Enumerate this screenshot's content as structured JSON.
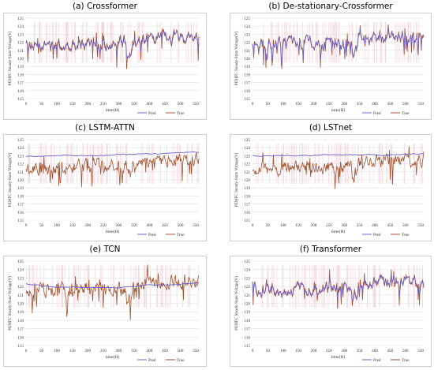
{
  "colors": {
    "pred": "#6f63c9",
    "true": "#a0522d",
    "grid": "#e0e0e0",
    "band": "#f0c6d2"
  },
  "shared": {
    "ylabel": "PEMFC Steady-State Voltage(V)",
    "xlabel": "time(H)",
    "yticks": [
      "115",
      "116",
      "117",
      "118",
      "119",
      "120",
      "121",
      "122",
      "123",
      "124",
      "125"
    ],
    "xticks": [
      "0",
      "50",
      "100",
      "150",
      "200",
      "250",
      "300",
      "350",
      "400",
      "450",
      "500",
      "550"
    ],
    "legend": {
      "pred": "Pred",
      "true": "True"
    }
  },
  "chart_data": [
    {
      "type": "line",
      "title": "(a) Crossformer",
      "xlabel": "time(H)",
      "ylabel": "PEMFC Steady-State Voltage(V)",
      "xlim": [
        0,
        560
      ],
      "ylim": [
        115,
        125
      ],
      "grid": true,
      "legend": "bottom-right",
      "series": [
        {
          "name": "Pred",
          "style": "tracking",
          "smooth": 0.55,
          "base": [
            [
              0,
              121.5
            ],
            [
              100,
              121.5
            ],
            [
              200,
              121.9
            ],
            [
              300,
              121.8
            ],
            [
              400,
              122.4
            ],
            [
              500,
              122.5
            ],
            [
              560,
              122.5
            ]
          ]
        },
        {
          "name": "True",
          "style": "noisy",
          "base": [
            [
              0,
              121.6
            ],
            [
              100,
              121.6
            ],
            [
              200,
              122.0
            ],
            [
              300,
              121.8
            ],
            [
              400,
              122.5
            ],
            [
              500,
              122.6
            ],
            [
              560,
              122.6
            ]
          ]
        }
      ]
    },
    {
      "type": "line",
      "title": "(b) De-stationary-Crossformer",
      "xlabel": "time(H)",
      "ylabel": "PEMFC Steady-State Voltage(V)",
      "xlim": [
        0,
        560
      ],
      "ylim": [
        115,
        125
      ],
      "grid": true,
      "legend": "bottom-right",
      "series": [
        {
          "name": "Pred",
          "style": "tracking",
          "smooth": 0.7,
          "base": [
            [
              0,
              121.6
            ],
            [
              100,
              121.7
            ],
            [
              200,
              121.9
            ],
            [
              300,
              121.8
            ],
            [
              400,
              122.4
            ],
            [
              500,
              122.6
            ],
            [
              560,
              122.7
            ]
          ]
        },
        {
          "name": "True",
          "style": "noisy",
          "base": [
            [
              0,
              121.7
            ],
            [
              100,
              121.8
            ],
            [
              200,
              122.0
            ],
            [
              300,
              121.8
            ],
            [
              400,
              122.5
            ],
            [
              500,
              122.7
            ],
            [
              560,
              122.8
            ]
          ]
        }
      ]
    },
    {
      "type": "line",
      "title": "(c) LSTM-ATTN",
      "xlabel": "time(H)",
      "ylabel": "PEMFC Steady-State Voltage(V)",
      "xlim": [
        0,
        560
      ],
      "ylim": [
        115,
        125
      ],
      "grid": true,
      "legend": "bottom-right",
      "series": [
        {
          "name": "Pred",
          "style": "smooth",
          "base": [
            [
              0,
              122.9
            ],
            [
              150,
              123.0
            ],
            [
              250,
              123.0
            ],
            [
              300,
              123.2
            ],
            [
              400,
              123.2
            ],
            [
              560,
              123.4
            ]
          ]
        },
        {
          "name": "True",
          "style": "noisy",
          "base": [
            [
              0,
              121.4
            ],
            [
              100,
              121.4
            ],
            [
              200,
              121.8
            ],
            [
              300,
              121.6
            ],
            [
              400,
              122.4
            ],
            [
              500,
              122.5
            ],
            [
              560,
              122.6
            ]
          ]
        }
      ]
    },
    {
      "type": "line",
      "title": "(d) LSTnet",
      "xlabel": "time(H)",
      "ylabel": "PEMFC Steady-State Voltage(V)",
      "xlim": [
        0,
        560
      ],
      "ylim": [
        115,
        125
      ],
      "grid": true,
      "legend": "bottom-right",
      "series": [
        {
          "name": "Pred",
          "style": "smooth",
          "base": [
            [
              0,
              123.0
            ],
            [
              200,
              123.05
            ],
            [
              400,
              123.1
            ],
            [
              560,
              123.2
            ]
          ]
        },
        {
          "name": "True",
          "style": "noisy",
          "base": [
            [
              0,
              121.4
            ],
            [
              100,
              121.4
            ],
            [
              200,
              121.6
            ],
            [
              300,
              121.5
            ],
            [
              400,
              122.3
            ],
            [
              500,
              122.4
            ],
            [
              560,
              122.5
            ]
          ]
        }
      ]
    },
    {
      "type": "line",
      "title": "(e) TCN",
      "xlabel": "time(H)",
      "ylabel": "PEMFC Steady-State Voltage(V)",
      "xlim": [
        0,
        560
      ],
      "ylim": [
        115,
        125
      ],
      "grid": true,
      "legend": "bottom-right",
      "series": [
        {
          "name": "Pred",
          "style": "smooth",
          "base": [
            [
              0,
              122.3
            ],
            [
              100,
              122.0
            ],
            [
              200,
              121.9
            ],
            [
              300,
              121.8
            ],
            [
              400,
              122.2
            ],
            [
              500,
              122.3
            ],
            [
              560,
              122.4
            ]
          ]
        },
        {
          "name": "True",
          "style": "noisy",
          "base": [
            [
              0,
              121.6
            ],
            [
              100,
              121.5
            ],
            [
              200,
              121.8
            ],
            [
              300,
              121.6
            ],
            [
              400,
              122.4
            ],
            [
              500,
              122.6
            ],
            [
              560,
              122.6
            ]
          ]
        }
      ]
    },
    {
      "type": "line",
      "title": "(f) Transformer",
      "xlabel": "time(H)",
      "ylabel": "PEMFC Steady-State Voltage(V)",
      "xlim": [
        0,
        560
      ],
      "ylim": [
        115,
        125
      ],
      "grid": true,
      "legend": "bottom-right",
      "series": [
        {
          "name": "Pred",
          "style": "tracking",
          "smooth": 0.6,
          "base": [
            [
              0,
              121.5
            ],
            [
              100,
              121.4
            ],
            [
              200,
              121.9
            ],
            [
              300,
              121.8
            ],
            [
              400,
              122.3
            ],
            [
              500,
              122.4
            ],
            [
              560,
              122.5
            ]
          ]
        },
        {
          "name": "True",
          "style": "noisy",
          "base": [
            [
              0,
              121.6
            ],
            [
              100,
              121.5
            ],
            [
              200,
              122.0
            ],
            [
              300,
              121.8
            ],
            [
              400,
              122.5
            ],
            [
              500,
              122.6
            ],
            [
              560,
              122.6
            ]
          ]
        }
      ]
    }
  ]
}
